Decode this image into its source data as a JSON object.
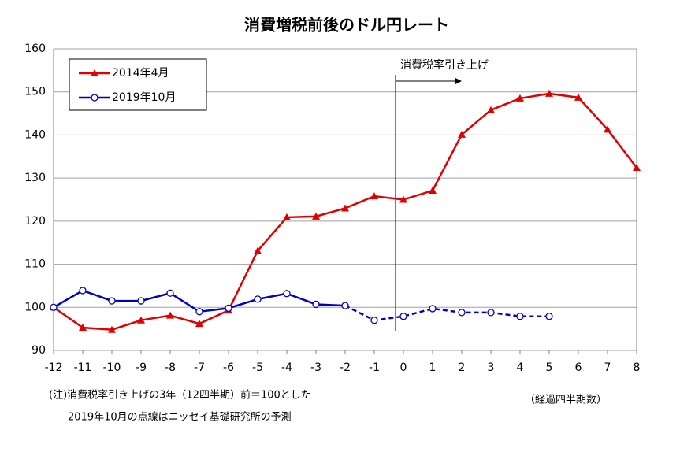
{
  "chart_data": {
    "type": "line",
    "title": "消費増税前後のドル円レート",
    "x": [
      -12,
      -11,
      -10,
      -9,
      -8,
      -7,
      -6,
      -5,
      -4,
      -3,
      -2,
      -1,
      0,
      1,
      2,
      3,
      4,
      5,
      6,
      7,
      8
    ],
    "series": [
      {
        "name": "2014年4月",
        "color": "#e00000",
        "marker": "triangle",
        "values": [
          100,
          95.3,
          94.8,
          97,
          98.1,
          96.2,
          99.3,
          113.1,
          120.9,
          121.1,
          123,
          125.8,
          125,
          127.1,
          140.1,
          145.8,
          148.5,
          149.6,
          148.7,
          141.3,
          132.4
        ]
      },
      {
        "name": "2019年10月",
        "color": "#0000c0",
        "marker": "circle",
        "dash_from_x": -2,
        "values": [
          100,
          103.9,
          101.5,
          101.5,
          103.3,
          99,
          99.8,
          101.9,
          103.2,
          100.7,
          100.4,
          97,
          97.9,
          99.7,
          98.8,
          98.8,
          97.9,
          97.9,
          null,
          null,
          null
        ]
      }
    ],
    "xlim": [
      -12,
      8
    ],
    "xticks": [
      -12,
      -11,
      -10,
      -9,
      -8,
      -7,
      -6,
      -5,
      -4,
      -3,
      -2,
      -1,
      0,
      1,
      2,
      3,
      4,
      5,
      6,
      7,
      8
    ],
    "ylim": [
      90,
      160
    ],
    "yticks": [
      90,
      100,
      110,
      120,
      130,
      140,
      150,
      160
    ],
    "grid": true,
    "legend": "upper left",
    "annotation": "消費税率引き上げ",
    "x_label": "（経過四半期数）",
    "notes": [
      "(注)消費税率引き上げの3年（12四半期）前＝100とした",
      "2019年10月の点線はニッセイ基礎研究所の予測"
    ]
  }
}
